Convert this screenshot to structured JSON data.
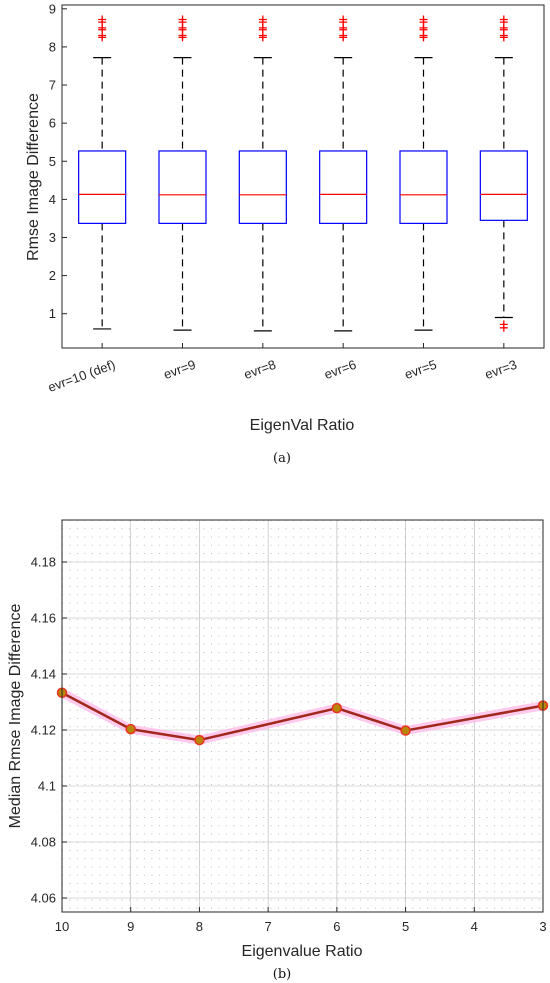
{
  "chart_data": [
    {
      "type": "box",
      "caption": "(a)",
      "xlabel": "EigenVal Ratio",
      "ylabel": "Rmse Image Difference",
      "ylim": [
        0.1,
        9.1
      ],
      "yticks": [
        1,
        2,
        3,
        4,
        5,
        6,
        7,
        8,
        9
      ],
      "categories": [
        "evr=10 (def)",
        "evr=9",
        "evr=8",
        "evr=6",
        "evr=5",
        "evr=3"
      ],
      "boxes": [
        {
          "whisker_low": 0.6,
          "q1": 3.37,
          "median": 4.13,
          "q3": 5.27,
          "whisker_high": 7.72,
          "outliers": [
            8.25,
            8.3,
            8.45,
            8.5,
            8.65,
            8.72
          ]
        },
        {
          "whisker_low": 0.57,
          "q1": 3.37,
          "median": 4.12,
          "q3": 5.27,
          "whisker_high": 7.72,
          "outliers": [
            8.25,
            8.3,
            8.45,
            8.5,
            8.65,
            8.72
          ]
        },
        {
          "whisker_low": 0.55,
          "q1": 3.37,
          "median": 4.12,
          "q3": 5.27,
          "whisker_high": 7.72,
          "outliers": [
            8.25,
            8.3,
            8.45,
            8.5,
            8.65,
            8.72
          ]
        },
        {
          "whisker_low": 0.55,
          "q1": 3.37,
          "median": 4.13,
          "q3": 5.27,
          "whisker_high": 7.72,
          "outliers": [
            8.25,
            8.3,
            8.45,
            8.5,
            8.65,
            8.72
          ]
        },
        {
          "whisker_low": 0.57,
          "q1": 3.37,
          "median": 4.12,
          "q3": 5.27,
          "whisker_high": 7.72,
          "outliers": [
            8.25,
            8.3,
            8.45,
            8.5,
            8.65,
            8.72
          ]
        },
        {
          "whisker_low": 0.9,
          "q1": 3.45,
          "median": 4.13,
          "q3": 5.27,
          "whisker_high": 7.72,
          "outliers": [
            0.63,
            0.72,
            8.25,
            8.3,
            8.45,
            8.5,
            8.65,
            8.72
          ]
        }
      ],
      "colors": {
        "box": "#0000ff",
        "median": "#ff0000",
        "whisker": "#000000",
        "outlier": "#ff0000"
      },
      "grid": false
    },
    {
      "type": "line",
      "caption": "(b)",
      "xlabel": "Eigenvalue Ratio",
      "ylabel": "Median Rmse Image Difference",
      "x_reversed": true,
      "xlim": [
        3,
        10
      ],
      "xticks": [
        10,
        9,
        8,
        7,
        6,
        5,
        4,
        3
      ],
      "ylim": [
        4.055,
        4.195
      ],
      "yticks": [
        4.06,
        4.08,
        4.1,
        4.12,
        4.14,
        4.16,
        4.18
      ],
      "ytick_labels": [
        "4.06",
        "4.08",
        "4.1",
        "4.12",
        "4.14",
        "4.16",
        "4.18"
      ],
      "x": [
        10,
        9,
        8,
        6,
        5,
        3
      ],
      "y": [
        4.1333,
        4.1203,
        4.1164,
        4.1278,
        4.1198,
        4.1287
      ],
      "colors": {
        "line": "#a0281c",
        "halo": "#ffb3e6",
        "marker_fill": "#b8860b",
        "marker_edge": "#e8331f"
      },
      "grid": "minor-dotted"
    }
  ]
}
